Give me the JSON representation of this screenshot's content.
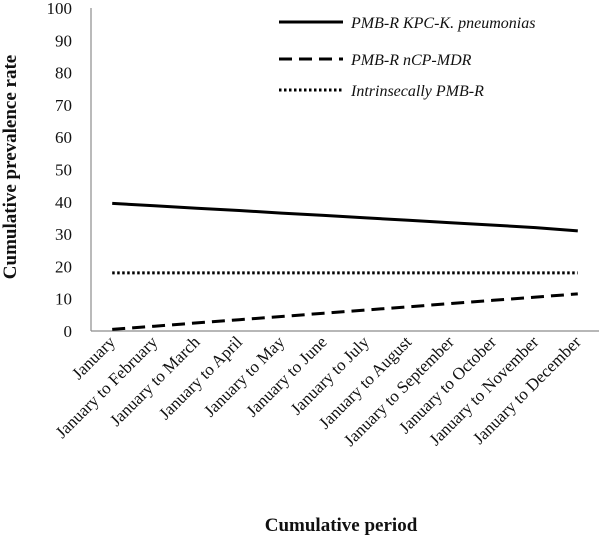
{
  "chart_data": {
    "type": "line",
    "xlabel": "Cumulative  period",
    "ylabel": "Cumulative  prevalence  rate",
    "ylim": [
      0,
      100
    ],
    "yticks": [
      0,
      10,
      20,
      30,
      40,
      50,
      60,
      70,
      80,
      90,
      100
    ],
    "grid": false,
    "legend_position": "top-right",
    "categories": [
      "January",
      "January to February",
      "January to March",
      "January to April",
      "January to May",
      "January to June",
      "January to July",
      "January to August",
      "January to September",
      "January to October",
      "January to November",
      "January to December"
    ],
    "series": [
      {
        "name": "PMB-R KPC-K. pneumonias",
        "style": "solid",
        "color": "#000000",
        "values": [
          39.5,
          38.8,
          38.0,
          37.3,
          36.5,
          35.8,
          35.0,
          34.3,
          33.5,
          32.8,
          32.0,
          31.0
        ]
      },
      {
        "name": "PMB-R nCP-MDR",
        "style": "dashed",
        "color": "#000000",
        "values": [
          0.5,
          1.5,
          2.5,
          3.5,
          4.5,
          5.5,
          6.5,
          7.5,
          8.5,
          9.5,
          10.5,
          11.5
        ]
      },
      {
        "name": "Intrinsecally PMB-R",
        "style": "dotted",
        "color": "#000000",
        "values": [
          18,
          18,
          18,
          18,
          18,
          18,
          18,
          18,
          18,
          18,
          18,
          18
        ]
      }
    ]
  }
}
